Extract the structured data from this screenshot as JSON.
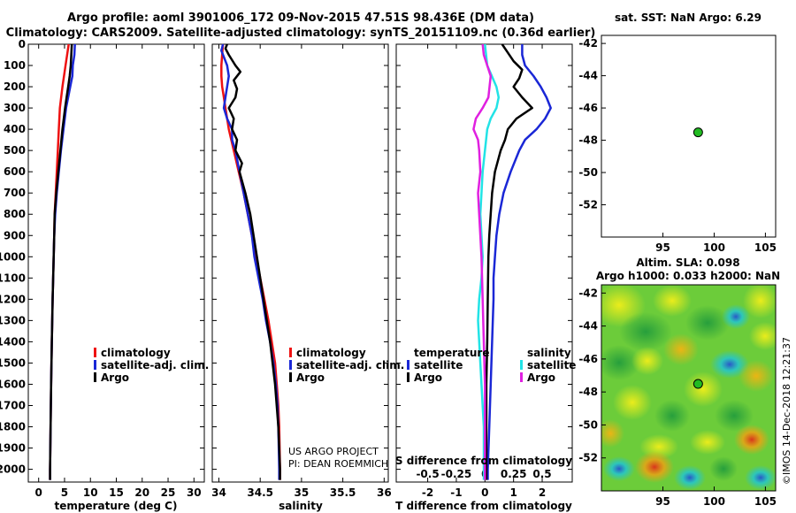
{
  "colors": {
    "climatology": "#ee1111",
    "satellite": "#1a27d6",
    "argo": "#000000",
    "s_satellite": "#22e3e6",
    "s_argo": "#e020e0",
    "dot": "#22bb22"
  },
  "header": {
    "title_line1": "Argo profile: aoml 3901006_172 09-Nov-2015 47.51S 98.436E (DM data)",
    "title_line2": "Climatology: CARS2009. Satellite-adjusted climatology: synTS_20151109.nc (0.36d earlier)"
  },
  "chart_data": [
    {
      "type": "line",
      "id": "temperature",
      "xlabel": "temperature (deg C)",
      "xlim": [
        -2,
        32
      ],
      "ylim": [
        2060,
        0
      ],
      "xticks": [
        "0",
        "5",
        "10",
        "15",
        "20",
        "25",
        "30"
      ],
      "yticks": [
        "0",
        "100",
        "200",
        "300",
        "400",
        "500",
        "600",
        "700",
        "800",
        "900",
        "1000",
        "1100",
        "1200",
        "1300",
        "1400",
        "1500",
        "1600",
        "1700",
        "1800",
        "1900",
        "2000"
      ],
      "legend": {
        "placement": "bottom-right",
        "items": [
          "climatology",
          "satellite-adj. clim.",
          "Argo"
        ]
      },
      "series": [
        {
          "name": "climatology",
          "color_key": "climatology",
          "depth": [
            0,
            50,
            100,
            200,
            300,
            400,
            500,
            600,
            700,
            800,
            900,
            1000,
            1200,
            1400,
            1600,
            1800,
            2000,
            2050
          ],
          "values": [
            5.8,
            5.5,
            5.2,
            4.6,
            4.1,
            3.9,
            3.7,
            3.5,
            3.3,
            3.1,
            3.0,
            2.9,
            2.7,
            2.55,
            2.4,
            2.3,
            2.2,
            2.2
          ]
        },
        {
          "name": "satellite-adj. clim.",
          "color_key": "satellite",
          "depth": [
            0,
            50,
            100,
            150,
            200,
            300,
            400,
            500,
            600,
            700,
            800,
            900,
            1000,
            1200,
            1400,
            1600,
            1800,
            2000,
            2050
          ],
          "values": [
            7.0,
            6.9,
            6.6,
            6.5,
            6.1,
            5.3,
            4.8,
            4.3,
            3.9,
            3.5,
            3.2,
            3.0,
            2.9,
            2.7,
            2.55,
            2.4,
            2.3,
            2.2,
            2.2
          ]
        },
        {
          "name": "Argo",
          "color_key": "argo",
          "depth": [
            0,
            50,
            100,
            150,
            200,
            250,
            300,
            400,
            500,
            600,
            700,
            800,
            900,
            1000,
            1200,
            1400,
            1600,
            1800,
            2000,
            2050
          ],
          "values": [
            6.4,
            6.3,
            6.2,
            6.0,
            5.7,
            5.4,
            5.1,
            4.6,
            4.2,
            3.8,
            3.4,
            3.1,
            3.0,
            2.9,
            2.7,
            2.55,
            2.4,
            2.3,
            2.2,
            2.2
          ]
        }
      ]
    },
    {
      "type": "line",
      "id": "salinity",
      "xlabel": "salinity",
      "xlim": [
        33.92,
        36.05
      ],
      "ylim": [
        2060,
        0
      ],
      "xticks": [
        "34",
        "34.5",
        "35",
        "35.5",
        "36"
      ],
      "legend": {
        "placement": "bottom-right",
        "items": [
          "climatology",
          "satellite-adj. clim.",
          "Argo"
        ]
      },
      "series": [
        {
          "name": "climatology",
          "color_key": "climatology",
          "depth": [
            0,
            50,
            100,
            150,
            200,
            250,
            300,
            400,
            500,
            600,
            700,
            800,
            900,
            1000,
            1100,
            1200,
            1300,
            1400,
            1500,
            1600,
            1700,
            1800,
            2000,
            2050
          ],
          "values": [
            34.05,
            34.04,
            34.03,
            34.03,
            34.04,
            34.06,
            34.08,
            34.12,
            34.18,
            34.24,
            34.3,
            34.35,
            34.4,
            34.45,
            34.5,
            34.55,
            34.6,
            34.64,
            34.68,
            34.7,
            34.72,
            34.73,
            34.74,
            34.74
          ]
        },
        {
          "name": "satellite-adj. clim.",
          "color_key": "satellite",
          "depth": [
            0,
            30,
            60,
            100,
            150,
            200,
            250,
            300,
            350,
            400,
            450,
            500,
            600,
            700,
            800,
            900,
            1000,
            1100,
            1200,
            1300,
            1400,
            1500,
            1600,
            1700,
            1800,
            2000,
            2050
          ],
          "values": [
            34.05,
            34.03,
            34.06,
            34.1,
            34.12,
            34.1,
            34.08,
            34.06,
            34.1,
            34.16,
            34.16,
            34.2,
            34.25,
            34.3,
            34.35,
            34.4,
            34.43,
            34.48,
            34.53,
            34.57,
            34.62,
            34.66,
            34.69,
            34.71,
            34.72,
            34.73,
            34.73
          ]
        },
        {
          "name": "Argo",
          "color_key": "argo",
          "depth": [
            0,
            20,
            50,
            100,
            130,
            170,
            210,
            250,
            300,
            350,
            400,
            450,
            500,
            560,
            600,
            700,
            800,
            900,
            1000,
            1200,
            1400,
            1600,
            1800,
            2000,
            2050
          ],
          "values": [
            34.1,
            34.08,
            34.12,
            34.2,
            34.26,
            34.18,
            34.22,
            34.2,
            34.12,
            34.18,
            34.16,
            34.22,
            34.2,
            34.28,
            34.25,
            34.32,
            34.38,
            34.42,
            34.46,
            34.54,
            34.62,
            34.68,
            34.72,
            34.74,
            34.74
          ]
        }
      ]
    },
    {
      "type": "line",
      "id": "difference",
      "xlabel": "T difference from climatology",
      "xlabel_top": "S difference from climatology",
      "xlim": [
        -3.1,
        3.05
      ],
      "ylim": [
        2060,
        0
      ],
      "xticks": [
        "-2",
        "-1",
        "0",
        "1",
        "2"
      ],
      "s_xticks": [
        "-0.5",
        "-0.25",
        "0",
        "0.25",
        "0.5"
      ],
      "legend_temperature": {
        "title": "temperature",
        "items": [
          "satellite",
          "Argo"
        ]
      },
      "legend_salinity": {
        "title": "salinity",
        "items": [
          "satellite",
          "Argo"
        ]
      },
      "series": [
        {
          "name": "T satellite",
          "color_key": "satellite",
          "depth": [
            0,
            50,
            100,
            150,
            200,
            250,
            300,
            350,
            400,
            450,
            500,
            600,
            700,
            800,
            900,
            1000,
            1100,
            1200,
            1400,
            1600,
            1800,
            2000,
            2050
          ],
          "values": [
            1.3,
            1.3,
            1.4,
            1.7,
            1.95,
            2.15,
            2.3,
            2.1,
            1.8,
            1.4,
            1.2,
            0.9,
            0.65,
            0.5,
            0.4,
            0.35,
            0.3,
            0.3,
            0.25,
            0.2,
            0.15,
            0.1,
            0.1
          ]
        },
        {
          "name": "T Argo",
          "color_key": "argo",
          "depth": [
            0,
            40,
            80,
            120,
            160,
            200,
            250,
            300,
            350,
            400,
            450,
            500,
            600,
            700,
            800,
            900,
            1000,
            1200,
            1400,
            1600,
            1800,
            2000,
            2050
          ],
          "values": [
            0.6,
            0.8,
            1.0,
            1.3,
            1.2,
            1.0,
            1.3,
            1.65,
            1.1,
            0.8,
            0.7,
            0.55,
            0.35,
            0.25,
            0.2,
            0.15,
            0.12,
            0.1,
            0.08,
            0.05,
            0.05,
            0.05,
            0.05
          ]
        },
        {
          "name": "S satellite",
          "color_key": "s_satellite",
          "depth": [
            0,
            50,
            100,
            150,
            200,
            250,
            300,
            350,
            400,
            450,
            500,
            600,
            700,
            800,
            900,
            1000,
            1100,
            1200,
            1300,
            1400,
            1500,
            1600,
            1700,
            1800,
            1900,
            2000,
            2050
          ],
          "values": [
            0.0,
            0.01,
            0.02,
            0.06,
            0.1,
            0.12,
            0.1,
            0.05,
            0.02,
            0.01,
            0.0,
            -0.02,
            -0.03,
            -0.04,
            -0.03,
            -0.02,
            -0.03,
            -0.05,
            -0.06,
            -0.05,
            -0.04,
            -0.03,
            -0.02,
            -0.01,
            -0.01,
            -0.01,
            -0.01
          ]
        },
        {
          "name": "S Argo",
          "color_key": "s_argo",
          "depth": [
            0,
            50,
            100,
            150,
            200,
            250,
            300,
            350,
            400,
            450,
            500,
            600,
            700,
            800,
            900,
            1000,
            1200,
            1400,
            1600,
            1800,
            2000,
            2050
          ],
          "values": [
            -0.02,
            -0.01,
            0.02,
            0.05,
            0.04,
            0.03,
            -0.02,
            -0.08,
            -0.1,
            -0.06,
            -0.05,
            -0.04,
            -0.06,
            -0.05,
            -0.04,
            -0.03,
            -0.02,
            -0.01,
            0.0,
            0.0,
            0.0,
            0.0
          ]
        }
      ]
    },
    {
      "type": "scatter",
      "id": "sst_map",
      "title": "sat. SST: NaN Argo: 6.29",
      "xlim": [
        89,
        106
      ],
      "ylim": [
        -54,
        -41.5
      ],
      "xticks": [
        "95",
        "100",
        "105"
      ],
      "yticks": [
        "-42",
        "-44",
        "-46",
        "-48",
        "-50",
        "-52"
      ],
      "points": [
        {
          "lon": 98.436,
          "lat": -47.51
        }
      ]
    },
    {
      "type": "heatmap",
      "id": "sla_map",
      "title_line1": "Altim. SLA: 0.098",
      "title_line2": "Argo h1000: 0.033 h2000: NaN",
      "xlim": [
        89,
        106
      ],
      "ylim": [
        -54,
        -41.5
      ],
      "xticks": [
        "95",
        "100",
        "105"
      ],
      "yticks": [
        "-42",
        "-44",
        "-46",
        "-48",
        "-50",
        "-52"
      ],
      "points": [
        {
          "lon": 98.436,
          "lat": -47.51
        }
      ]
    }
  ],
  "credits": {
    "line1": "US ARGO PROJECT",
    "line2": "PI: DEAN ROEMMICH",
    "timestamp": "©IMOS 14-Dec-2018 12:21:37"
  }
}
